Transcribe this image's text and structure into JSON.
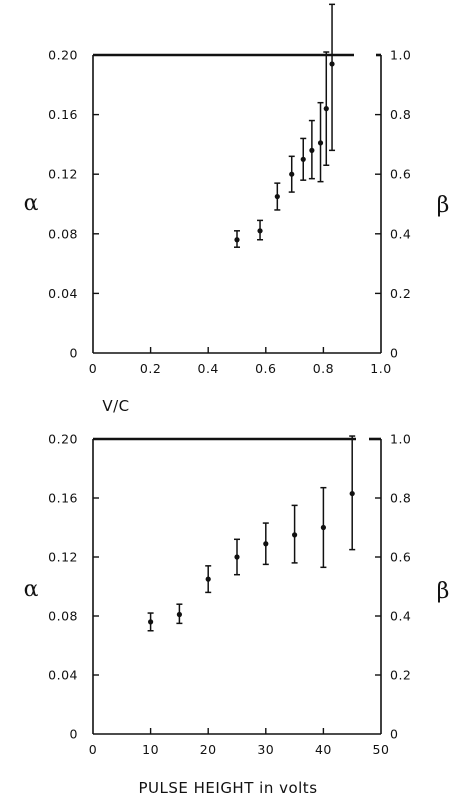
{
  "chart_data": [
    {
      "type": "scatter",
      "title": "",
      "xlabel": "V/C",
      "ylabel": "α",
      "y2label": "β",
      "xlim": [
        0,
        1.0
      ],
      "ylim": [
        0,
        0.2
      ],
      "y2lim": [
        0,
        1.0
      ],
      "xticks": [
        "0",
        "0.2",
        "0.4",
        "0.6",
        "0.8",
        "1.0"
      ],
      "yticks": [
        "0",
        "0.04",
        "0.08",
        "0.12",
        "0.16",
        "0.20"
      ],
      "y2ticks": [
        "0",
        "0.2",
        "0.4",
        "0.6",
        "0.8",
        "1.0"
      ],
      "grid": false,
      "error_bars": true,
      "x": [
        0.5,
        0.58,
        0.64,
        0.69,
        0.73,
        0.76,
        0.79,
        0.81,
        0.83
      ],
      "y": [
        0.076,
        0.082,
        0.105,
        0.12,
        0.13,
        0.136,
        0.141,
        0.164,
        0.194
      ],
      "y_low": [
        0.071,
        0.076,
        0.096,
        0.108,
        0.116,
        0.117,
        0.115,
        0.126,
        0.136
      ],
      "y_high": [
        0.082,
        0.089,
        0.114,
        0.132,
        0.144,
        0.156,
        0.168,
        0.202,
        0.234
      ]
    },
    {
      "type": "scatter",
      "title": "",
      "xlabel": "PULSE HEIGHT in volts",
      "ylabel": "α",
      "y2label": "β",
      "xlim": [
        0,
        50
      ],
      "ylim": [
        0,
        0.2
      ],
      "y2lim": [
        0,
        1.0
      ],
      "xticks": [
        "0",
        "10",
        "20",
        "30",
        "40",
        "50"
      ],
      "yticks": [
        "0",
        "0.04",
        "0.08",
        "0.12",
        "0.16",
        "0.20"
      ],
      "y2ticks": [
        "0",
        "0.2",
        "0.4",
        "0.6",
        "0.8",
        "1.0"
      ],
      "grid": false,
      "error_bars": true,
      "x": [
        10,
        15,
        20,
        25,
        30,
        35,
        40,
        45
      ],
      "y": [
        0.076,
        0.081,
        0.105,
        0.12,
        0.129,
        0.135,
        0.14,
        0.163
      ],
      "y_low": [
        0.07,
        0.075,
        0.096,
        0.108,
        0.115,
        0.116,
        0.113,
        0.125
      ],
      "y_high": [
        0.082,
        0.088,
        0.114,
        0.132,
        0.143,
        0.155,
        0.167,
        0.202
      ]
    }
  ]
}
